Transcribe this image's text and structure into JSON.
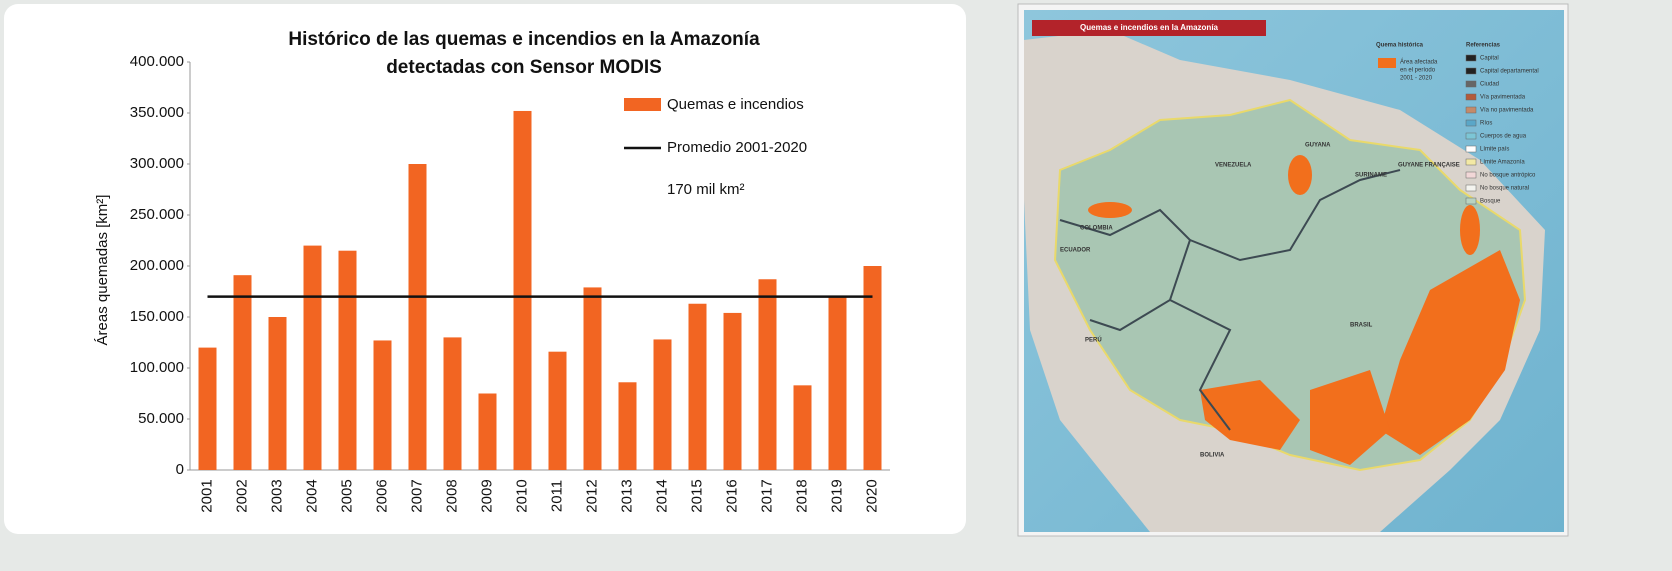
{
  "chart_data": {
    "type": "bar",
    "title": [
      "Histórico de las quemas e incendios  en la Amazonía",
      "detectadas con Sensor MODIS"
    ],
    "y_label": "Áreas quemadas [km²]",
    "categories": [
      "2001",
      "2002",
      "2003",
      "2004",
      "2005",
      "2006",
      "2007",
      "2008",
      "2009",
      "2010",
      "2011",
      "2012",
      "2013",
      "2014",
      "2015",
      "2016",
      "2017",
      "2018",
      "2019",
      "2020"
    ],
    "series": [
      {
        "name": "Quemas e incendios",
        "type": "bar",
        "color": "#f26522",
        "values": [
          120000,
          191000,
          150000,
          220000,
          215000,
          127000,
          300000,
          130000,
          75000,
          352000,
          116000,
          179000,
          86000,
          128000,
          163000,
          154000,
          187000,
          83000,
          170000,
          200000
        ]
      },
      {
        "name": "Promedio 2001-2020",
        "type": "line",
        "color": "#111111",
        "values": [
          170000,
          170000,
          170000,
          170000,
          170000,
          170000,
          170000,
          170000,
          170000,
          170000,
          170000,
          170000,
          170000,
          170000,
          170000,
          170000,
          170000,
          170000,
          170000,
          170000
        ]
      }
    ],
    "annotation": "170 mil km²",
    "ylim": [
      0,
      400000
    ],
    "yticks": [
      0,
      {
        "value": 50000,
        "label": "50.000"
      },
      {
        "value": 100000,
        "label": "100.000"
      },
      {
        "value": 150000,
        "label": "150.000"
      },
      {
        "value": 200000,
        "label": "200.000"
      },
      {
        "value": 250000,
        "label": "250.000"
      },
      {
        "value": 300000,
        "label": "300.000"
      },
      {
        "value": 350000,
        "label": "350.000"
      },
      {
        "value": 400000,
        "label": "400.000"
      }
    ],
    "grid": false
  },
  "map": {
    "title": "Quemas e incendios en la Amazonía",
    "legend_title": "Quema histórica",
    "legend_item": [
      "Área afectada",
      "en el período",
      "2001 - 2020"
    ],
    "references_title": "Referencias",
    "references": [
      "Capital",
      "Capital departamental",
      "Ciudad",
      "Vía pavimentada",
      "Vía no pavimentada",
      "Ríos",
      "Cuerpos de agua",
      "Límite país",
      "Límite Amazonía",
      "No bosque antrópico",
      "No bosque natural",
      "Bosque"
    ],
    "countries": [
      "VENEZUELA",
      "GUYANA",
      "SURINAME",
      "GUYANE FRANÇAISE",
      "COLOMBIA",
      "ECUADOR",
      "PERÚ",
      "BRASIL",
      "BOLIVIA"
    ]
  }
}
